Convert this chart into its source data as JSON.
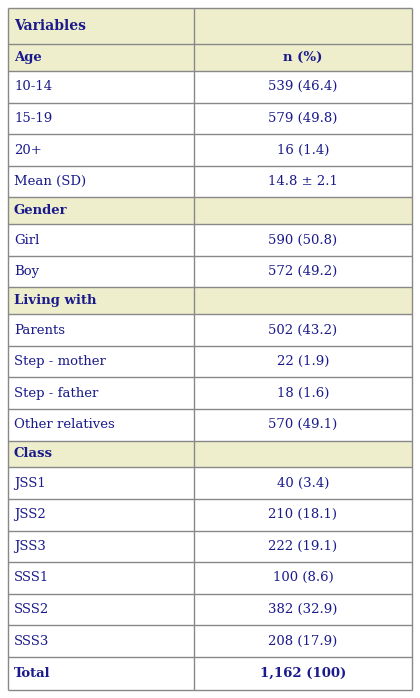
{
  "header_bg": "#eeeecc",
  "section_bg": "#eeeecc",
  "white_bg": "#ffffff",
  "border_color": "#888888",
  "text_color": "#1a1a8c",
  "font_size": 9.5,
  "header_font_size": 10.0,
  "col_split": 0.46,
  "rows": [
    {
      "type": "header",
      "left": "Variables",
      "right": "",
      "left_bold": true,
      "right_bold": true
    },
    {
      "type": "section",
      "left": "Age",
      "right": "n (%)",
      "left_bold": true,
      "right_bold": true
    },
    {
      "type": "data",
      "left": "10-14",
      "right": "539 (46.4)",
      "left_bold": false,
      "right_bold": false
    },
    {
      "type": "data",
      "left": "15-19",
      "right": "579 (49.8)",
      "left_bold": false,
      "right_bold": false
    },
    {
      "type": "data",
      "left": "20+",
      "right": "16 (1.4)",
      "left_bold": false,
      "right_bold": false
    },
    {
      "type": "data",
      "left": "Mean (SD)",
      "right": "14.8 ± 2.1",
      "left_bold": false,
      "right_bold": false
    },
    {
      "type": "section",
      "left": "Gender",
      "right": "",
      "left_bold": true,
      "right_bold": true
    },
    {
      "type": "data",
      "left": "Girl",
      "right": "590 (50.8)",
      "left_bold": false,
      "right_bold": false
    },
    {
      "type": "data",
      "left": "Boy",
      "right": "572 (49.2)",
      "left_bold": false,
      "right_bold": false
    },
    {
      "type": "section",
      "left": "Living with",
      "right": "",
      "left_bold": true,
      "right_bold": true
    },
    {
      "type": "data",
      "left": "Parents",
      "right": "502 (43.2)",
      "left_bold": false,
      "right_bold": false
    },
    {
      "type": "data",
      "left": "Step - mother",
      "right": "22 (1.9)",
      "left_bold": false,
      "right_bold": false
    },
    {
      "type": "data",
      "left": "Step - father",
      "right": "18 (1.6)",
      "left_bold": false,
      "right_bold": false
    },
    {
      "type": "data",
      "left": "Other relatives",
      "right": "570 (49.1)",
      "left_bold": false,
      "right_bold": false
    },
    {
      "type": "section",
      "left": "Class",
      "right": "",
      "left_bold": true,
      "right_bold": true
    },
    {
      "type": "data",
      "left": "JSS1",
      "right": "40 (3.4)",
      "left_bold": false,
      "right_bold": false
    },
    {
      "type": "data",
      "left": "JSS2",
      "right": "210 (18.1)",
      "left_bold": false,
      "right_bold": false
    },
    {
      "type": "data",
      "left": "JSS3",
      "right": "222 (19.1)",
      "left_bold": false,
      "right_bold": false
    },
    {
      "type": "data",
      "left": "SSS1",
      "right": "100 (8.6)",
      "left_bold": false,
      "right_bold": false
    },
    {
      "type": "data",
      "left": "SSS2",
      "right": "382 (32.9)",
      "left_bold": false,
      "right_bold": false
    },
    {
      "type": "data",
      "left": "SSS3",
      "right": "208 (17.9)",
      "left_bold": false,
      "right_bold": false
    },
    {
      "type": "total",
      "left": "Total",
      "right": "1,162 (100)",
      "left_bold": true,
      "right_bold": true
    }
  ]
}
